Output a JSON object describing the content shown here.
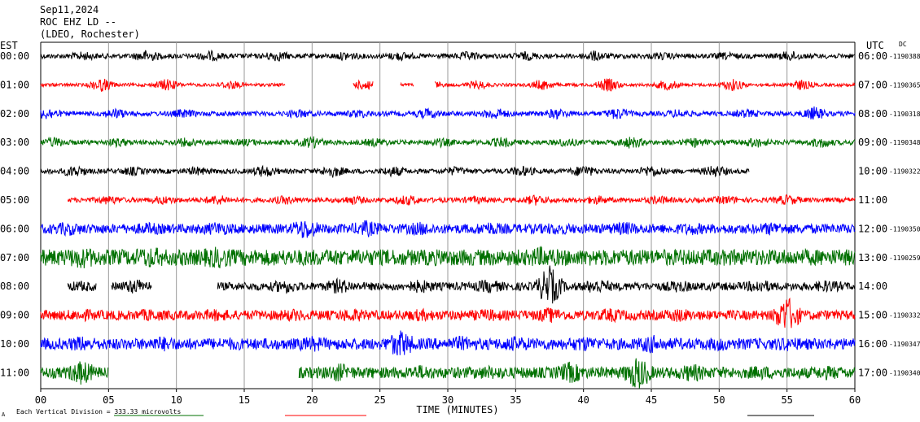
{
  "header": {
    "date": "Sep11,2024",
    "station": "ROC EHZ LD --",
    "network": "(LDEO, Rochester)"
  },
  "labels": {
    "left_timezone": "EST",
    "right_timezone": "UTC",
    "dc_label": "DC",
    "xlabel": "TIME (MINUTES)",
    "scale_note": "Each Vertical Division = 333.33 microvolts",
    "corner_mark": "A"
  },
  "chart_data": {
    "type": "line",
    "title": "",
    "xlabel": "TIME (MINUTES)",
    "xlim": [
      0,
      60
    ],
    "xticks": [
      0,
      5,
      10,
      15,
      20,
      25,
      30,
      35,
      40,
      45,
      50,
      55,
      60
    ],
    "xtick_labels": [
      "00",
      "05",
      "10",
      "15",
      "20",
      "25",
      "30",
      "35",
      "40",
      "45",
      "50",
      "55",
      "60"
    ],
    "grid": "vertical lines every 5 minutes",
    "colors": [
      "#000000",
      "#ff0000",
      "#0000ff",
      "#007000"
    ],
    "rows": [
      {
        "est": "00:00",
        "utc": "06:00",
        "dc": "-1190388",
        "color": "#000000",
        "amp": 3,
        "start": 0,
        "end": 60,
        "gaps": [],
        "bursts": [
          [
            3.1,
            6
          ],
          [
            7.8,
            8
          ],
          [
            12.5,
            7
          ],
          [
            17.4,
            7
          ],
          [
            22.5,
            6
          ],
          [
            26.5,
            6
          ],
          [
            31.5,
            6
          ],
          [
            35.8,
            6
          ],
          [
            40.8,
            7
          ],
          [
            45.8,
            5
          ],
          [
            50.5,
            5
          ],
          [
            55.2,
            7
          ]
        ]
      },
      {
        "est": "01:00",
        "utc": "07:00",
        "dc": "-1190365",
        "color": "#ff0000",
        "amp": 2,
        "start": 0,
        "end": 60,
        "gaps": [
          [
            18,
            23
          ],
          [
            24.5,
            26.5
          ],
          [
            27.5,
            29
          ]
        ],
        "bursts": [
          [
            4.5,
            9
          ],
          [
            9.3,
            8
          ],
          [
            14,
            6
          ],
          [
            19.2,
            6
          ],
          [
            24,
            8
          ],
          [
            28.7,
            6
          ],
          [
            32.2,
            6
          ],
          [
            37,
            7
          ],
          [
            41.8,
            9
          ],
          [
            46.2,
            7
          ],
          [
            51,
            8
          ],
          [
            56,
            7
          ]
        ]
      },
      {
        "est": "02:00",
        "utc": "08:00",
        "dc": "-1190318",
        "color": "#0000ff",
        "amp": 3,
        "start": 0,
        "end": 60,
        "gaps": [],
        "bursts": [
          [
            0.5,
            8
          ],
          [
            5.5,
            7
          ],
          [
            10.5,
            6
          ],
          [
            19,
            6
          ],
          [
            23.5,
            6
          ],
          [
            28.5,
            7
          ],
          [
            33.5,
            8
          ],
          [
            38,
            7
          ],
          [
            42.5,
            8
          ],
          [
            47,
            6
          ],
          [
            52,
            6
          ],
          [
            57,
            9
          ]
        ]
      },
      {
        "est": "03:00",
        "utc": "09:00",
        "dc": "-1190348",
        "color": "#007000",
        "amp": 3,
        "start": 0,
        "end": 60,
        "gaps": [],
        "bursts": [
          [
            1,
            7
          ],
          [
            5.7,
            6
          ],
          [
            10.6,
            6
          ],
          [
            15.2,
            5
          ],
          [
            20,
            8
          ],
          [
            24.7,
            6
          ],
          [
            29.5,
            6
          ],
          [
            34,
            7
          ],
          [
            38.7,
            6
          ],
          [
            43.5,
            8
          ],
          [
            48.2,
            6
          ],
          [
            52.7,
            7
          ],
          [
            57.5,
            7
          ]
        ]
      },
      {
        "est": "04:00",
        "utc": "10:00",
        "dc": "-1190322",
        "color": "#000000",
        "amp": 3,
        "start": 0,
        "end": 52.2,
        "gaps": [],
        "bursts": [
          [
            2.5,
            8
          ],
          [
            6.8,
            6
          ],
          [
            11.5,
            6
          ],
          [
            16.5,
            8
          ],
          [
            21.5,
            8
          ],
          [
            26,
            7
          ],
          [
            30.5,
            6
          ],
          [
            35.5,
            7
          ],
          [
            40,
            8
          ],
          [
            45,
            8
          ],
          [
            49.7,
            8
          ]
        ]
      },
      {
        "est": "05:00",
        "utc": "11:00",
        "dc": "",
        "color": "#ff0000",
        "amp": 3,
        "start": 2,
        "end": 60,
        "gaps": [],
        "bursts": [
          [
            5,
            6
          ],
          [
            9,
            6
          ],
          [
            13,
            7
          ],
          [
            18,
            6
          ],
          [
            23,
            6
          ],
          [
            27,
            7
          ],
          [
            32,
            5
          ],
          [
            36.5,
            7
          ],
          [
            41,
            6
          ],
          [
            45.5,
            6
          ],
          [
            50.5,
            6
          ],
          [
            55,
            7
          ]
        ]
      },
      {
        "est": "06:00",
        "utc": "12:00",
        "dc": "-1190350",
        "color": "#0000ff",
        "amp": 6,
        "start": 0,
        "end": 60,
        "gaps": [],
        "bursts": [
          [
            2,
            9
          ],
          [
            8,
            8
          ],
          [
            13,
            9
          ],
          [
            19.5,
            14
          ],
          [
            24,
            11
          ],
          [
            28,
            9
          ],
          [
            33,
            9
          ],
          [
            38,
            8
          ],
          [
            43,
            9
          ],
          [
            48,
            8
          ],
          [
            54,
            9
          ]
        ]
      },
      {
        "est": "07:00",
        "utc": "13:00",
        "dc": "-1190259",
        "color": "#007000",
        "amp": 10,
        "start": 0,
        "end": 60,
        "gaps": [],
        "bursts": [
          [
            3,
            14
          ],
          [
            8,
            14
          ],
          [
            13,
            14
          ],
          [
            18,
            9
          ],
          [
            22,
            10
          ],
          [
            27,
            8
          ],
          [
            37,
            14
          ],
          [
            42,
            9
          ],
          [
            47,
            8
          ],
          [
            55,
            9
          ]
        ]
      },
      {
        "est": "08:00",
        "utc": "14:00",
        "dc": "",
        "color": "#000000",
        "amp": 5,
        "start": 2,
        "end": 60,
        "gaps": [
          [
            4.1,
            5.2
          ],
          [
            8.2,
            13
          ]
        ],
        "bursts": [
          [
            3,
            7
          ],
          [
            7,
            10
          ],
          [
            18,
            9
          ],
          [
            22,
            10
          ],
          [
            28,
            9
          ],
          [
            33,
            9
          ],
          [
            37.5,
            26
          ],
          [
            41,
            10
          ],
          [
            47,
            8
          ],
          [
            53,
            9
          ],
          [
            58,
            8
          ]
        ]
      },
      {
        "est": "09:00",
        "utc": "15:00",
        "dc": "-1190332",
        "color": "#ff0000",
        "amp": 6,
        "start": 0,
        "end": 60,
        "gaps": [],
        "bursts": [
          [
            3,
            8
          ],
          [
            8,
            8
          ],
          [
            13,
            8
          ],
          [
            18.5,
            8
          ],
          [
            23,
            9
          ],
          [
            28,
            8
          ],
          [
            33,
            8
          ],
          [
            37.5,
            10
          ],
          [
            42,
            9
          ],
          [
            47,
            9
          ],
          [
            55,
            24
          ]
        ]
      },
      {
        "est": "10:00",
        "utc": "16:00",
        "dc": "-1190347",
        "color": "#0000ff",
        "amp": 7,
        "start": 0,
        "end": 60,
        "gaps": [],
        "bursts": [
          [
            3,
            10
          ],
          [
            9,
            10
          ],
          [
            14,
            8
          ],
          [
            20,
            10
          ],
          [
            26.5,
            18
          ],
          [
            31,
            10
          ],
          [
            35,
            10
          ],
          [
            40,
            10
          ],
          [
            45,
            12
          ],
          [
            50,
            9
          ],
          [
            55,
            9
          ]
        ]
      },
      {
        "est": "11:00",
        "utc": "17:00",
        "dc": "-1190340",
        "color": "#007000",
        "amp": 7,
        "start": 0,
        "end": 60,
        "gaps": [
          [
            5,
            19
          ]
        ],
        "bursts": [
          [
            3,
            16
          ],
          [
            22,
            12
          ],
          [
            28,
            10
          ],
          [
            33,
            9
          ],
          [
            39,
            14
          ],
          [
            44,
            22
          ],
          [
            48,
            12
          ],
          [
            53,
            9
          ],
          [
            58,
            9
          ]
        ]
      }
    ]
  }
}
